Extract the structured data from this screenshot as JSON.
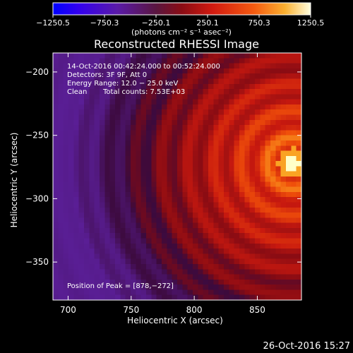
{
  "chart_data": {
    "type": "heatmap",
    "title": "Reconstructed RHESSI Image",
    "xlabel": "Heliocentric X (arcsec)",
    "ylabel": "Heliocentric Y (arcsec)",
    "xlim": [
      688,
      885
    ],
    "ylim": [
      -380,
      -185
    ],
    "x_ticks": [
      700,
      750,
      800,
      850
    ],
    "y_ticks": [
      -200,
      -250,
      -300,
      -350
    ],
    "x_tick_labels": [
      "700",
      "750",
      "800",
      "850"
    ],
    "y_tick_labels": [
      "−200",
      "−250",
      "−300",
      "−350"
    ],
    "peak": [
      878,
      -272
    ],
    "colorbar": {
      "range": [
        -1250.5,
        1250.5
      ],
      "tick_labels": [
        "−1250.5",
        "−750.3",
        "−250.1",
        "250.1",
        "750.3",
        "1250.5"
      ],
      "units_label": "(photons cm⁻² s⁻¹ asec⁻²)"
    },
    "annotations": {
      "time_range": "14-Oct-2016 00:42:24.000 to 00:52:24.000",
      "detectors": "Detectors: 3F 9F, Att 0",
      "energy": "Energy Range: 12.0 − 25.0 keV",
      "clean": "Clean",
      "counts": "Total counts: 7.53E+03",
      "peak_position": "Position of Peak = [878,−272]"
    },
    "grid": false,
    "legend": "none"
  },
  "footer": {
    "timestamp": "26-Oct-2016 15:27"
  },
  "colors": {
    "background": "#000000",
    "text": "#ffffff"
  }
}
